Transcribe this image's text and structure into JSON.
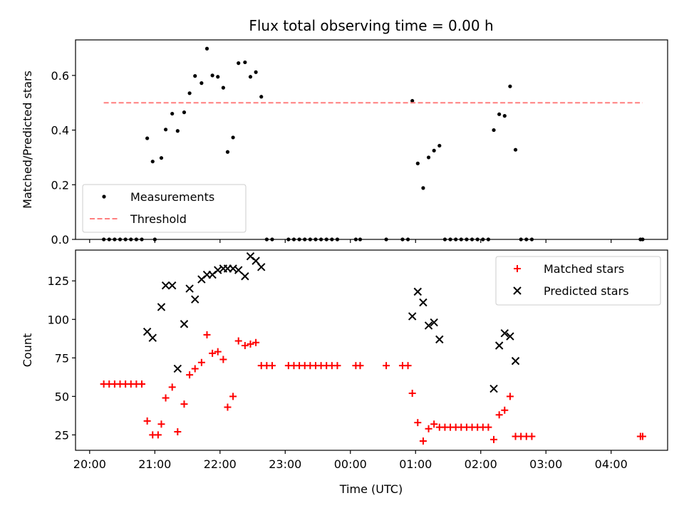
{
  "figure": {
    "title": "Flux total observing time = 0.00 h",
    "xlabel": "Time (UTC)",
    "x_ticks": [
      "20:00",
      "21:00",
      "22:00",
      "23:00",
      "00:00",
      "01:00",
      "02:00",
      "03:00",
      "04:00"
    ]
  },
  "chart_data": [
    {
      "type": "scatter",
      "panel": "top",
      "ylabel": "Matched/Predicted stars",
      "ylim": [
        0,
        0.73
      ],
      "y_ticks": [
        0.0,
        0.2,
        0.4,
        0.6
      ],
      "y_tick_labels": [
        "0.0",
        "0.2",
        "0.4",
        "0.6"
      ],
      "xlim": [
        "19:47",
        "04:52"
      ],
      "legend_position": "lower-left",
      "series": [
        {
          "name": "Measurements",
          "marker": "dot",
          "color": "#000000",
          "points": [
            [
              "20:13",
              0.0
            ],
            [
              "20:18",
              0.0
            ],
            [
              "20:23",
              0.0
            ],
            [
              "20:28",
              0.0
            ],
            [
              "20:33",
              0.0
            ],
            [
              "20:38",
              0.0
            ],
            [
              "20:43",
              0.0
            ],
            [
              "20:48",
              0.0
            ],
            [
              "20:53",
              0.37
            ],
            [
              "20:58",
              0.285
            ],
            [
              "21:00",
              0.0
            ],
            [
              "21:06",
              0.298
            ],
            [
              "21:10",
              0.402
            ],
            [
              "21:16",
              0.46
            ],
            [
              "21:21",
              0.397
            ],
            [
              "21:27",
              0.465
            ],
            [
              "21:32",
              0.535
            ],
            [
              "21:37",
              0.598
            ],
            [
              "21:43",
              0.572
            ],
            [
              "21:48",
              0.698
            ],
            [
              "21:53",
              0.6
            ],
            [
              "21:58",
              0.595
            ],
            [
              "22:03",
              0.555
            ],
            [
              "22:07",
              0.32
            ],
            [
              "22:12",
              0.373
            ],
            [
              "22:17",
              0.645
            ],
            [
              "22:23",
              0.648
            ],
            [
              "22:28",
              0.595
            ],
            [
              "22:33",
              0.612
            ],
            [
              "22:38",
              0.522
            ],
            [
              "22:43",
              0.0
            ],
            [
              "22:48",
              0.0
            ],
            [
              "23:03",
              0.0
            ],
            [
              "23:08",
              0.0
            ],
            [
              "23:13",
              0.0
            ],
            [
              "23:18",
              0.0
            ],
            [
              "23:23",
              0.0
            ],
            [
              "23:28",
              0.0
            ],
            [
              "23:33",
              0.0
            ],
            [
              "23:38",
              0.0
            ],
            [
              "23:43",
              0.0
            ],
            [
              "23:48",
              0.0
            ],
            [
              "00:05",
              0.0
            ],
            [
              "00:09",
              0.0
            ],
            [
              "00:33",
              0.0
            ],
            [
              "00:48",
              0.0
            ],
            [
              "00:53",
              0.0
            ],
            [
              "00:57",
              0.507
            ],
            [
              "01:02",
              0.278
            ],
            [
              "01:07",
              0.188
            ],
            [
              "01:12",
              0.3
            ],
            [
              "01:17",
              0.325
            ],
            [
              "01:22",
              0.343
            ],
            [
              "01:27",
              0.0
            ],
            [
              "01:32",
              0.0
            ],
            [
              "01:37",
              0.0
            ],
            [
              "01:42",
              0.0
            ],
            [
              "01:47",
              0.0
            ],
            [
              "01:52",
              0.0
            ],
            [
              "01:57",
              0.0
            ],
            [
              "02:02",
              0.0
            ],
            [
              "02:07",
              0.0
            ],
            [
              "02:12",
              0.4
            ],
            [
              "02:17",
              0.458
            ],
            [
              "02:22",
              0.452
            ],
            [
              "02:27",
              0.56
            ],
            [
              "02:32",
              0.328
            ],
            [
              "02:37",
              0.0
            ],
            [
              "02:42",
              0.0
            ],
            [
              "02:47",
              0.0
            ],
            [
              "04:27",
              0.0
            ],
            [
              "04:29",
              0.0
            ]
          ]
        },
        {
          "name": "Threshold",
          "marker": "dashed-line",
          "color": "#ff7f7f",
          "points": [
            [
              "20:13",
              0.5
            ],
            [
              "04:29",
              0.5
            ]
          ]
        }
      ]
    },
    {
      "type": "scatter",
      "panel": "bottom",
      "ylabel": "Count",
      "ylim": [
        15,
        145
      ],
      "y_ticks": [
        25,
        50,
        75,
        100,
        125
      ],
      "y_tick_labels": [
        "25",
        "50",
        "75",
        "100",
        "125"
      ],
      "xlim": [
        "19:47",
        "04:52"
      ],
      "legend_position": "upper-right",
      "series": [
        {
          "name": "Matched stars",
          "marker": "plus",
          "color": "#ff0000",
          "points": [
            [
              "20:13",
              58
            ],
            [
              "20:18",
              58
            ],
            [
              "20:23",
              58
            ],
            [
              "20:28",
              58
            ],
            [
              "20:33",
              58
            ],
            [
              "20:38",
              58
            ],
            [
              "20:43",
              58
            ],
            [
              "20:48",
              58
            ],
            [
              "20:53",
              34
            ],
            [
              "20:58",
              25
            ],
            [
              "21:03",
              25
            ],
            [
              "21:06",
              32
            ],
            [
              "21:10",
              49
            ],
            [
              "21:16",
              56
            ],
            [
              "21:21",
              27
            ],
            [
              "21:27",
              45
            ],
            [
              "21:32",
              64
            ],
            [
              "21:37",
              68
            ],
            [
              "21:43",
              72
            ],
            [
              "21:48",
              90
            ],
            [
              "21:53",
              78
            ],
            [
              "21:58",
              79
            ],
            [
              "22:03",
              74
            ],
            [
              "22:07",
              43
            ],
            [
              "22:12",
              50
            ],
            [
              "22:17",
              86
            ],
            [
              "22:23",
              83
            ],
            [
              "22:28",
              84
            ],
            [
              "22:33",
              85
            ],
            [
              "22:38",
              70
            ],
            [
              "22:43",
              70
            ],
            [
              "22:48",
              70
            ],
            [
              "23:03",
              70
            ],
            [
              "23:08",
              70
            ],
            [
              "23:13",
              70
            ],
            [
              "23:18",
              70
            ],
            [
              "23:23",
              70
            ],
            [
              "23:28",
              70
            ],
            [
              "23:33",
              70
            ],
            [
              "23:38",
              70
            ],
            [
              "23:43",
              70
            ],
            [
              "23:48",
              70
            ],
            [
              "00:05",
              70
            ],
            [
              "00:09",
              70
            ],
            [
              "00:33",
              70
            ],
            [
              "00:48",
              70
            ],
            [
              "00:53",
              70
            ],
            [
              "00:57",
              52
            ],
            [
              "01:02",
              33
            ],
            [
              "01:07",
              21
            ],
            [
              "01:12",
              29
            ],
            [
              "01:17",
              32
            ],
            [
              "01:22",
              30
            ],
            [
              "01:27",
              30
            ],
            [
              "01:32",
              30
            ],
            [
              "01:37",
              30
            ],
            [
              "01:42",
              30
            ],
            [
              "01:47",
              30
            ],
            [
              "01:52",
              30
            ],
            [
              "01:57",
              30
            ],
            [
              "02:02",
              30
            ],
            [
              "02:07",
              30
            ],
            [
              "02:12",
              22
            ],
            [
              "02:17",
              38
            ],
            [
              "02:22",
              41
            ],
            [
              "02:27",
              50
            ],
            [
              "02:32",
              24
            ],
            [
              "02:37",
              24
            ],
            [
              "02:42",
              24
            ],
            [
              "02:47",
              24
            ],
            [
              "04:27",
              24
            ],
            [
              "04:29",
              24
            ]
          ]
        },
        {
          "name": "Predicted stars",
          "marker": "x",
          "color": "#000000",
          "points": [
            [
              "20:53",
              92
            ],
            [
              "20:58",
              88
            ],
            [
              "21:06",
              108
            ],
            [
              "21:10",
              122
            ],
            [
              "21:16",
              122
            ],
            [
              "21:21",
              68
            ],
            [
              "21:27",
              97
            ],
            [
              "21:32",
              120
            ],
            [
              "21:37",
              113
            ],
            [
              "21:43",
              126
            ],
            [
              "21:48",
              129
            ],
            [
              "21:53",
              129
            ],
            [
              "21:58",
              132
            ],
            [
              "22:03",
              133
            ],
            [
              "22:07",
              133
            ],
            [
              "22:12",
              133
            ],
            [
              "22:17",
              132
            ],
            [
              "22:23",
              128
            ],
            [
              "22:28",
              141
            ],
            [
              "22:33",
              138
            ],
            [
              "22:38",
              134
            ],
            [
              "00:57",
              102
            ],
            [
              "01:02",
              118
            ],
            [
              "01:07",
              111
            ],
            [
              "01:12",
              96
            ],
            [
              "01:17",
              98
            ],
            [
              "01:22",
              87
            ],
            [
              "02:12",
              55
            ],
            [
              "02:17",
              83
            ],
            [
              "02:22",
              91
            ],
            [
              "02:27",
              89
            ],
            [
              "02:32",
              73
            ]
          ]
        }
      ]
    }
  ]
}
